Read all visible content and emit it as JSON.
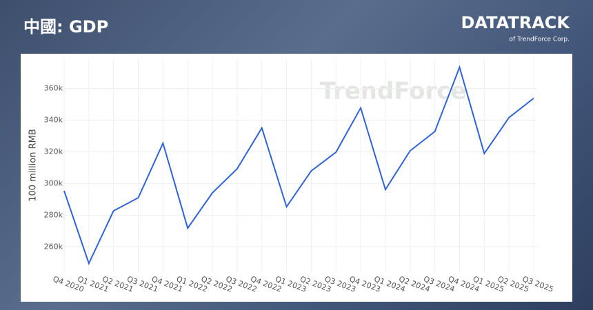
{
  "chart_data": {
    "type": "line",
    "title": "中國: GDP",
    "y_label": "100 million RMB",
    "categories": [
      "Q4 2020",
      "Q1 2021",
      "Q2 2021",
      "Q3 2021",
      "Q4 2021",
      "Q1 2022",
      "Q2 2022",
      "Q3 2022",
      "Q4 2022",
      "Q1 2023",
      "Q2 2023",
      "Q3 2023",
      "Q4 2023",
      "Q1 2024",
      "Q2 2024",
      "Q3 2024",
      "Q4 2024",
      "Q1 2025",
      "Q2 2025",
      "Q3 2025"
    ],
    "series": [
      {
        "name": "GDP",
        "color": "#2f62d8",
        "values": [
          295400,
          249500,
          282700,
          291000,
          325500,
          271800,
          294100,
          309300,
          335100,
          285300,
          308000,
          319800,
          347800,
          296200,
          320700,
          332900,
          373500,
          319000,
          341700,
          353900
        ]
      }
    ],
    "ylim": [
      244000,
      379000
    ],
    "yticks": [
      {
        "value": 260000,
        "label": "260k"
      },
      {
        "value": 280000,
        "label": "280k"
      },
      {
        "value": 300000,
        "label": "300k"
      },
      {
        "value": 320000,
        "label": "320k"
      },
      {
        "value": 340000,
        "label": "340k"
      },
      {
        "value": 360000,
        "label": "360k"
      }
    ],
    "grid": true
  },
  "branding": {
    "logo": "DATATRACK",
    "tagline": "of TrendForce Corp.",
    "watermark": "TrendForce"
  }
}
